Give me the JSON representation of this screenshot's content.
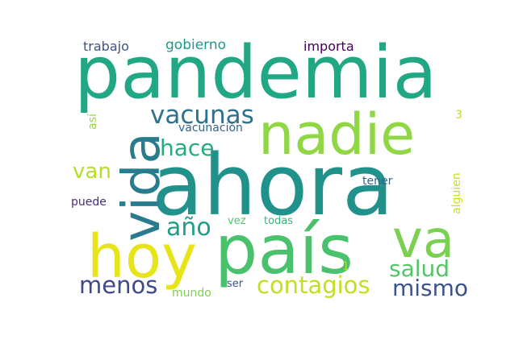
{
  "words": [
    {
      "text": "ahora",
      "color": "#21918c",
      "rotate": 0
    },
    {
      "text": "pandemia",
      "color": "#22a785",
      "rotate": 0
    },
    {
      "text": "país",
      "color": "#4ac16d",
      "rotate": 0
    },
    {
      "text": "nadie",
      "color": "#8fd744",
      "rotate": 0
    },
    {
      "text": "hoy",
      "color": "#e7e419",
      "rotate": 0
    },
    {
      "text": "vida",
      "color": "#287c8e",
      "rotate": -90
    },
    {
      "text": "va",
      "color": "#7ad151",
      "rotate": 0
    },
    {
      "text": "contagios",
      "color": "#c0df25",
      "rotate": 0
    },
    {
      "text": "vacunas",
      "color": "#2c728e",
      "rotate": 0
    },
    {
      "text": "menos",
      "color": "#3e4a89",
      "rotate": 0
    },
    {
      "text": "mismo",
      "color": "#3b528b",
      "rotate": 0
    },
    {
      "text": "salud",
      "color": "#52c569",
      "rotate": 0
    },
    {
      "text": "hace",
      "color": "#25ab82",
      "rotate": 0
    },
    {
      "text": "año",
      "color": "#1f9e89",
      "rotate": 0
    },
    {
      "text": "van",
      "color": "#b5de2b",
      "rotate": 0
    },
    {
      "text": "gobierno",
      "color": "#1f988b",
      "rotate": 0
    },
    {
      "text": "trabajo",
      "color": "#3b528b",
      "rotate": 0
    },
    {
      "text": "importa",
      "color": "#440154",
      "rotate": 0
    },
    {
      "text": "vacunación",
      "color": "#33638d",
      "rotate": 0
    },
    {
      "text": "así",
      "color": "#95d840",
      "rotate": -90
    },
    {
      "text": "3",
      "color": "#b8de29",
      "rotate": 0
    },
    {
      "text": "tener",
      "color": "#33638d",
      "rotate": 0
    },
    {
      "text": "alguien",
      "color": "#c8e020",
      "rotate": -90
    },
    {
      "text": "puede",
      "color": "#472d7b",
      "rotate": 0
    },
    {
      "text": "vez",
      "color": "#50c46a",
      "rotate": 0
    },
    {
      "text": "todas",
      "color": "#35b779",
      "rotate": 0
    },
    {
      "text": "1",
      "color": "#addc30",
      "rotate": 0
    },
    {
      "text": "ser",
      "color": "#3a538b",
      "rotate": 0
    },
    {
      "text": "mundo",
      "color": "#7cd250",
      "rotate": 0
    }
  ]
}
